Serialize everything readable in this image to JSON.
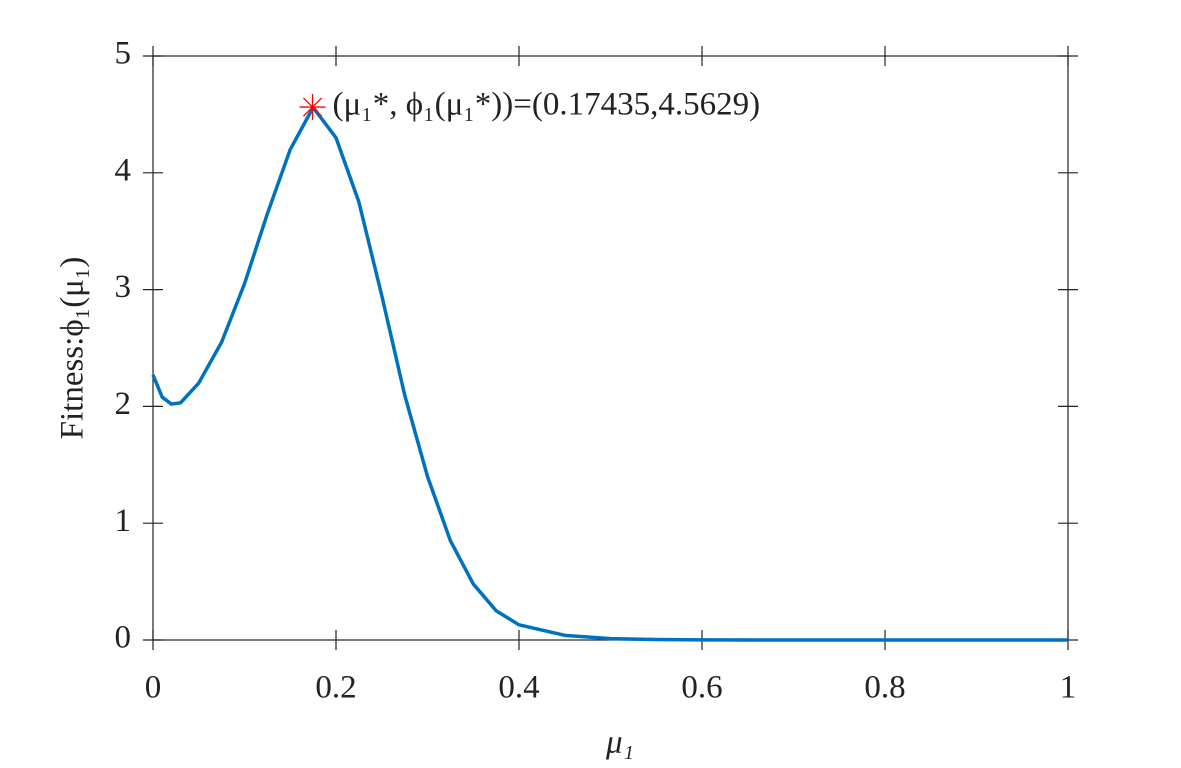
{
  "chart_data": {
    "type": "line",
    "x_label": "μ₁",
    "y_label": "Fitness:ϕ₁(μ₁)",
    "annotation": "(μ₁*,  ϕ₁(μ₁*))=(0.17435,4.5629)",
    "x": [
      0,
      0.01,
      0.02,
      0.03,
      0.05,
      0.075,
      0.1,
      0.125,
      0.15,
      0.175,
      0.2,
      0.225,
      0.25,
      0.275,
      0.3,
      0.325,
      0.35,
      0.375,
      0.4,
      0.45,
      0.5,
      0.55,
      0.6,
      0.7,
      0.8,
      0.9,
      1
    ],
    "series": [
      {
        "color": "#0072bd",
        "values": [
          2.27,
          2.08,
          2.02,
          2.03,
          2.2,
          2.55,
          3.05,
          3.65,
          4.2,
          4.56,
          4.3,
          3.75,
          2.95,
          2.1,
          1.4,
          0.85,
          0.48,
          0.25,
          0.13,
          0.04,
          0.012,
          0.004,
          0.001,
          0,
          0,
          0,
          0
        ]
      }
    ],
    "marker": {
      "x": 0.17435,
      "y": 4.5629,
      "color": "#ff0000"
    },
    "xlim": [
      0,
      1
    ],
    "xticks": [
      0,
      0.2,
      0.4,
      0.6,
      0.8,
      1
    ],
    "ylim": [
      0,
      5
    ],
    "yticks": [
      0,
      1,
      2,
      3,
      4,
      5
    ]
  }
}
